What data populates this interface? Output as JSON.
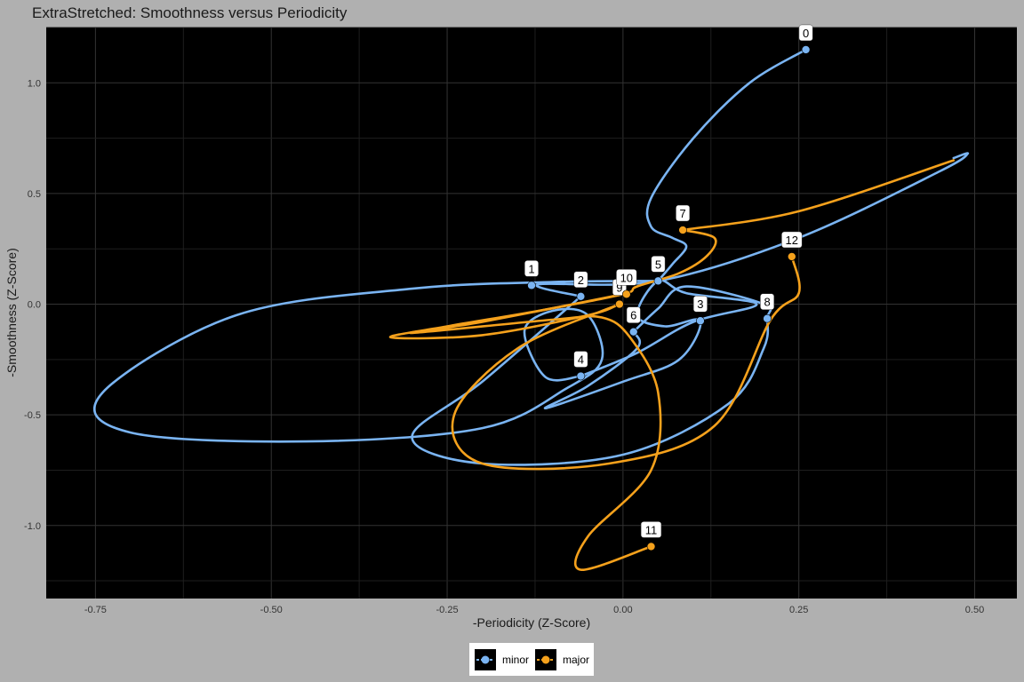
{
  "chart_data": {
    "type": "line",
    "title": "ExtraStretched: Smoothness versus Periodicity",
    "xlabel": "-Periodicity (Z-Score)",
    "ylabel": "-Smoothness (Z-Score)",
    "xlim": [
      -0.82,
      0.56
    ],
    "ylim": [
      -1.33,
      1.25
    ],
    "x_ticks": [
      -0.75,
      -0.5,
      -0.25,
      0.0,
      0.25,
      0.5
    ],
    "x_tick_labels": [
      "-0.75",
      "-0.50",
      "-0.25",
      "0.00",
      "0.25",
      "0.50"
    ],
    "y_ticks": [
      -1.0,
      -0.5,
      0.0,
      0.5,
      1.0
    ],
    "y_tick_labels": [
      "-1.0",
      "-0.5",
      "0.0",
      "0.5",
      "1.0"
    ],
    "grid": true,
    "legend_position": "bottom",
    "colors": {
      "minor": "#7ab4f2",
      "major": "#f5a11c",
      "panel": "#000000",
      "background": "#b0b0b0"
    },
    "series": [
      {
        "name": "minor",
        "color": "#7ab4f2"
      },
      {
        "name": "major",
        "color": "#f5a11c"
      }
    ],
    "points": [
      {
        "label": "0",
        "x": 0.26,
        "y": 1.15,
        "series": "minor"
      },
      {
        "label": "1",
        "x": -0.13,
        "y": 0.085,
        "series": "minor"
      },
      {
        "label": "2",
        "x": -0.06,
        "y": 0.035,
        "series": "minor"
      },
      {
        "label": "3",
        "x": 0.11,
        "y": -0.075,
        "series": "minor"
      },
      {
        "label": "4",
        "x": -0.06,
        "y": -0.325,
        "series": "minor"
      },
      {
        "label": "5",
        "x": 0.05,
        "y": 0.105,
        "series": "minor"
      },
      {
        "label": "6",
        "x": 0.015,
        "y": -0.125,
        "series": "minor"
      },
      {
        "label": "7",
        "x": 0.085,
        "y": 0.335,
        "series": "major"
      },
      {
        "label": "8",
        "x": 0.205,
        "y": -0.065,
        "series": "minor"
      },
      {
        "label": "9",
        "x": -0.005,
        "y": 0.0,
        "series": "major"
      },
      {
        "label": "10",
        "x": 0.005,
        "y": 0.045,
        "series": "major"
      },
      {
        "label": "11",
        "x": 0.04,
        "y": -1.095,
        "series": "major"
      },
      {
        "label": "12",
        "x": 0.24,
        "y": 0.215,
        "series": "major"
      }
    ],
    "paths": [
      {
        "series": "minor",
        "xy": [
          [
            0.26,
            1.15
          ],
          [
            0.18,
            1.0
          ],
          [
            0.1,
            0.75
          ],
          [
            0.04,
            0.48
          ],
          [
            0.04,
            0.35
          ],
          [
            0.07,
            0.3
          ],
          [
            0.09,
            0.26
          ],
          [
            0.07,
            0.18
          ],
          [
            0.05,
            0.105
          ]
        ]
      },
      {
        "series": "minor",
        "xy": [
          [
            0.05,
            0.105
          ],
          [
            -0.1,
            0.1
          ],
          [
            -0.3,
            0.07
          ],
          [
            -0.55,
            -0.05
          ],
          [
            -0.74,
            -0.4
          ],
          [
            -0.7,
            -0.58
          ],
          [
            -0.45,
            -0.62
          ],
          [
            -0.2,
            -0.56
          ],
          [
            -0.08,
            -0.38
          ],
          [
            -0.03,
            -0.25
          ],
          [
            -0.05,
            -0.05
          ],
          [
            -0.1,
            -0.03
          ],
          [
            -0.14,
            -0.12
          ],
          [
            -0.11,
            -0.33
          ],
          [
            -0.06,
            -0.325
          ]
        ]
      },
      {
        "series": "minor",
        "xy": [
          [
            -0.06,
            -0.325
          ],
          [
            0.02,
            -0.22
          ],
          [
            0.1,
            -0.08
          ],
          [
            0.19,
            0.0
          ],
          [
            0.09,
            0.05
          ],
          [
            0.05,
            0.105
          ],
          [
            0.02,
            -0.05
          ],
          [
            0.06,
            -0.1
          ],
          [
            0.11,
            -0.075
          ],
          [
            0.08,
            -0.25
          ],
          [
            0.0,
            -0.35
          ],
          [
            -0.11,
            -0.47
          ],
          [
            -0.05,
            -0.37
          ],
          [
            0.02,
            -0.2
          ],
          [
            0.015,
            -0.125
          ]
        ]
      },
      {
        "series": "minor",
        "xy": [
          [
            0.015,
            -0.125
          ],
          [
            0.05,
            -0.02
          ],
          [
            0.09,
            0.08
          ],
          [
            0.2,
            0.0
          ],
          [
            0.205,
            -0.065
          ],
          [
            0.2,
            -0.2
          ],
          [
            0.15,
            -0.45
          ],
          [
            0.0,
            -0.68
          ],
          [
            -0.2,
            -0.72
          ],
          [
            -0.3,
            -0.6
          ],
          [
            -0.2,
            -0.35
          ],
          [
            -0.06,
            0.035
          ]
        ]
      },
      {
        "series": "minor",
        "xy": [
          [
            -0.06,
            0.035
          ],
          [
            -0.12,
            0.09
          ],
          [
            0.05,
            0.105
          ],
          [
            0.25,
            0.3
          ],
          [
            0.45,
            0.6
          ],
          [
            0.49,
            0.68
          ],
          [
            0.47,
            0.66
          ]
        ]
      },
      {
        "series": "major",
        "xy": [
          [
            0.085,
            0.335
          ],
          [
            0.25,
            0.42
          ],
          [
            0.47,
            0.65
          ]
        ]
      },
      {
        "series": "major",
        "xy": [
          [
            0.085,
            0.335
          ],
          [
            0.13,
            0.3
          ],
          [
            0.12,
            0.22
          ],
          [
            0.08,
            0.14
          ],
          [
            0.02,
            0.08
          ],
          [
            0.0,
            0.045
          ],
          [
            -0.12,
            -0.03
          ],
          [
            -0.25,
            -0.1
          ],
          [
            -0.33,
            -0.15
          ],
          [
            -0.2,
            -0.14
          ],
          [
            -0.05,
            -0.05
          ],
          [
            -0.005,
            0.0
          ]
        ]
      },
      {
        "series": "major",
        "xy": [
          [
            -0.005,
            0.0
          ],
          [
            -0.15,
            -0.2
          ],
          [
            -0.24,
            -0.5
          ],
          [
            -0.2,
            -0.72
          ],
          [
            -0.02,
            -0.72
          ],
          [
            0.13,
            -0.55
          ],
          [
            0.21,
            -0.07
          ],
          [
            0.25,
            0.05
          ],
          [
            0.24,
            0.215
          ]
        ]
      },
      {
        "series": "major",
        "xy": [
          [
            0.04,
            -1.095
          ],
          [
            -0.06,
            -1.2
          ],
          [
            -0.05,
            -1.05
          ],
          [
            0.04,
            -0.75
          ],
          [
            0.05,
            -0.4
          ],
          [
            0.01,
            -0.15
          ],
          [
            -0.03,
            -0.06
          ],
          [
            -0.1,
            -0.07
          ],
          [
            -0.3,
            -0.13
          ],
          [
            -0.2,
            -0.08
          ],
          [
            0.0,
            0.045
          ]
        ]
      }
    ]
  }
}
